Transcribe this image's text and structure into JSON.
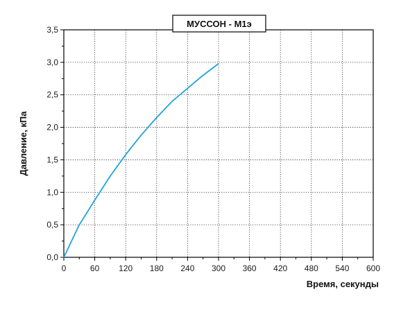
{
  "chart_data": {
    "type": "line",
    "title": "МУССОН - М1э",
    "xlabel": "Время, секунды",
    "ylabel": "Давление, кПа",
    "xlim": [
      0,
      600
    ],
    "ylim": [
      0,
      3.5
    ],
    "x_ticks": [
      0,
      60,
      120,
      180,
      240,
      300,
      360,
      420,
      480,
      540,
      600
    ],
    "x_tick_labels": [
      "0",
      "60",
      "120",
      "180",
      "240",
      "300",
      "360",
      "420",
      "480",
      "540",
      "600"
    ],
    "y_ticks": [
      0,
      0.5,
      1.0,
      1.5,
      2.0,
      2.5,
      3.0,
      3.5
    ],
    "y_tick_labels": [
      "0,0",
      "0,5",
      "1,0",
      "1,5",
      "2,0",
      "2,5",
      "3,0",
      "3,5"
    ],
    "grid": true,
    "legend": "none",
    "series": [
      {
        "color": "#1fa3dc",
        "x": [
          0,
          30,
          60,
          90,
          120,
          150,
          180,
          210,
          240,
          270,
          300
        ],
        "y": [
          0,
          0.5,
          0.88,
          1.25,
          1.58,
          1.88,
          2.15,
          2.4,
          2.6,
          2.8,
          2.98
        ]
      }
    ]
  }
}
